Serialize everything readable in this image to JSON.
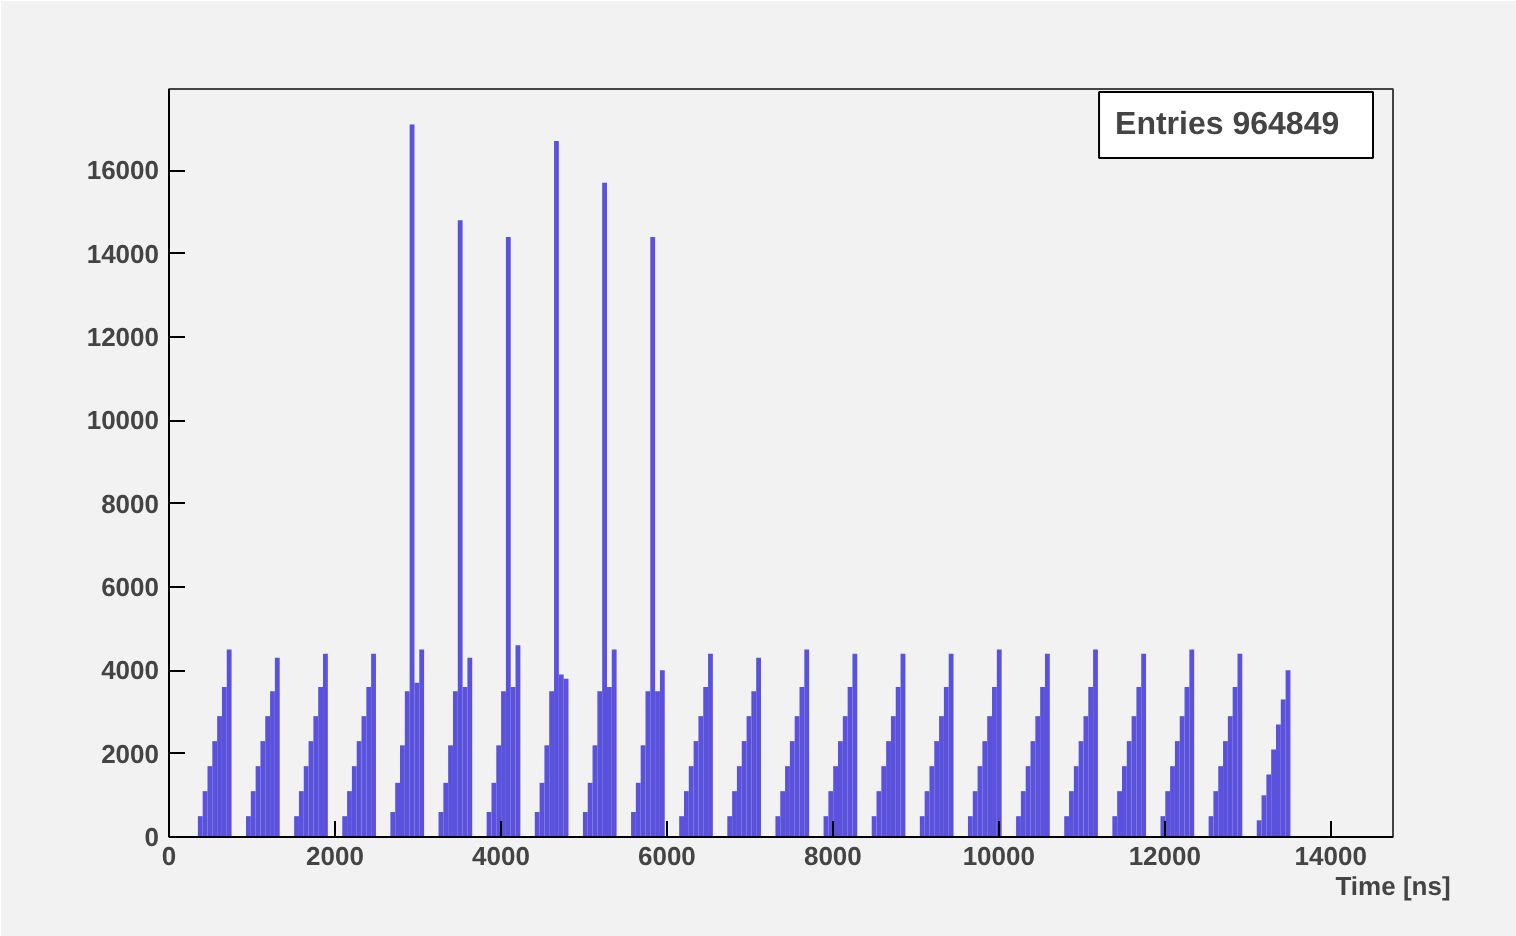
{
  "chart_data": {
    "type": "histogram",
    "xlabel": "Time [ns]",
    "annotations": [
      "Entries   964849"
    ],
    "color": "#5a52dc",
    "grid": false,
    "xlim": [
      0,
      14750
    ],
    "ylim": [
      0,
      17950
    ],
    "xticks": [
      0,
      2000,
      4000,
      6000,
      8000,
      10000,
      12000,
      14000
    ],
    "yticks": [
      0,
      2000,
      4000,
      6000,
      8000,
      10000,
      12000,
      14000,
      16000
    ],
    "bins": [
      0,
      58,
      116,
      174,
      232,
      290,
      348,
      406,
      464,
      522,
      580,
      638,
      696,
      754,
      812,
      870,
      928,
      986,
      1044,
      1102,
      1160,
      1218,
      1276,
      1334,
      1392,
      1450,
      1508,
      1566,
      1624,
      1682,
      1740,
      1798,
      1856,
      1914,
      1972,
      2030,
      2088,
      2146,
      2204,
      2262,
      2320,
      2378,
      2436,
      2494,
      2552,
      2610,
      2668,
      2726,
      2784,
      2842,
      2900,
      2958,
      3016,
      3074,
      3132,
      3190,
      3248,
      3306,
      3364,
      3422,
      3480,
      3538,
      3596,
      3654,
      3712,
      3770,
      3828,
      3886,
      3944,
      4002,
      4060,
      4118,
      4176,
      4234,
      4292,
      4350,
      4408,
      4466,
      4524,
      4582,
      4640,
      4698,
      4756,
      4814,
      4872,
      4930,
      4988,
      5046,
      5104,
      5162,
      5220,
      5278,
      5336,
      5394,
      5452,
      5510,
      5568,
      5626,
      5684,
      5742,
      5800,
      5858,
      5916,
      5974,
      6032,
      6090,
      6148,
      6206,
      6264,
      6322,
      6380,
      6438,
      6496,
      6554,
      6612,
      6670,
      6728,
      6786,
      6844,
      6902,
      6960,
      7018,
      7076,
      7134,
      7192,
      7250,
      7308,
      7366,
      7424,
      7482,
      7540,
      7598,
      7656,
      7714,
      7772,
      7830,
      7888,
      7946,
      8004,
      8062,
      8120,
      8178,
      8236,
      8294,
      8352,
      8410,
      8468,
      8526,
      8584,
      8642,
      8700,
      8758,
      8816,
      8874,
      8932,
      8990,
      9048,
      9106,
      9164,
      9222,
      9280,
      9338,
      9396,
      9454,
      9512,
      9570,
      9628,
      9686,
      9744,
      9802,
      9860,
      9918,
      9976,
      10034,
      10092,
      10150,
      10208,
      10266,
      10324,
      10382,
      10440,
      10498,
      10556,
      10614,
      10672,
      10730,
      10788,
      10846,
      10904,
      10962,
      11020,
      11078,
      11136,
      11194,
      11252,
      11310,
      11368,
      11426,
      11484,
      11542,
      11600,
      11658,
      11716,
      11774,
      11832,
      11890,
      11948,
      12006,
      12064,
      12122,
      12180,
      12238,
      12296,
      12354,
      12412,
      12470,
      12528,
      12586,
      12644,
      12702,
      12760,
      12818,
      12876,
      12934,
      12992,
      13050,
      13108,
      13166,
      13224,
      13282,
      13340,
      13398,
      13456,
      13514
    ],
    "values": [
      0,
      0,
      0,
      0,
      0,
      0,
      500,
      1100,
      1700,
      2300,
      2900,
      3600,
      4500,
      0,
      0,
      0,
      500,
      1100,
      1700,
      2300,
      2900,
      3500,
      4300,
      0,
      0,
      0,
      500,
      1100,
      1700,
      2300,
      2900,
      3600,
      4400,
      0,
      0,
      0,
      500,
      1100,
      1700,
      2300,
      2900,
      3600,
      4400,
      0,
      0,
      0,
      600,
      1300,
      2200,
      3500,
      17100,
      3700,
      4500,
      0,
      0,
      0,
      600,
      1300,
      2200,
      3500,
      14800,
      3600,
      4300,
      0,
      0,
      0,
      600,
      1300,
      2200,
      3500,
      14400,
      3600,
      4600,
      0,
      0,
      0,
      600,
      1300,
      2200,
      3500,
      16700,
      3900,
      3800,
      0,
      0,
      0,
      600,
      1300,
      2200,
      3500,
      15700,
      3600,
      4500,
      0,
      0,
      0,
      600,
      1300,
      2200,
      3500,
      14400,
      3500,
      4000,
      0,
      0,
      0,
      500,
      1100,
      1700,
      2300,
      2900,
      3600,
      4400,
      0,
      0,
      0,
      500,
      1100,
      1700,
      2300,
      2900,
      3500,
      4300,
      0,
      0,
      0,
      500,
      1100,
      1700,
      2300,
      2900,
      3600,
      4500,
      0,
      0,
      0,
      500,
      1100,
      1700,
      2300,
      2900,
      3600,
      4400,
      0,
      0,
      0,
      500,
      1100,
      1700,
      2300,
      2900,
      3600,
      4400,
      0,
      0,
      0,
      500,
      1100,
      1700,
      2300,
      2900,
      3600,
      4400,
      0,
      0,
      0,
      500,
      1100,
      1700,
      2300,
      2900,
      3600,
      4500,
      0,
      0,
      0,
      500,
      1100,
      1700,
      2300,
      2900,
      3600,
      4400,
      0,
      0,
      0,
      500,
      1100,
      1700,
      2300,
      2900,
      3600,
      4500,
      0,
      0,
      0,
      500,
      1100,
      1700,
      2300,
      2900,
      3600,
      4400,
      0,
      0,
      0,
      500,
      1100,
      1700,
      2300,
      2900,
      3600,
      4500,
      0,
      0,
      0,
      500,
      1100,
      1700,
      2300,
      2900,
      3600,
      4400,
      0,
      0,
      0,
      400,
      1000,
      1500,
      2100,
      2700,
      3300,
      4000
    ]
  }
}
